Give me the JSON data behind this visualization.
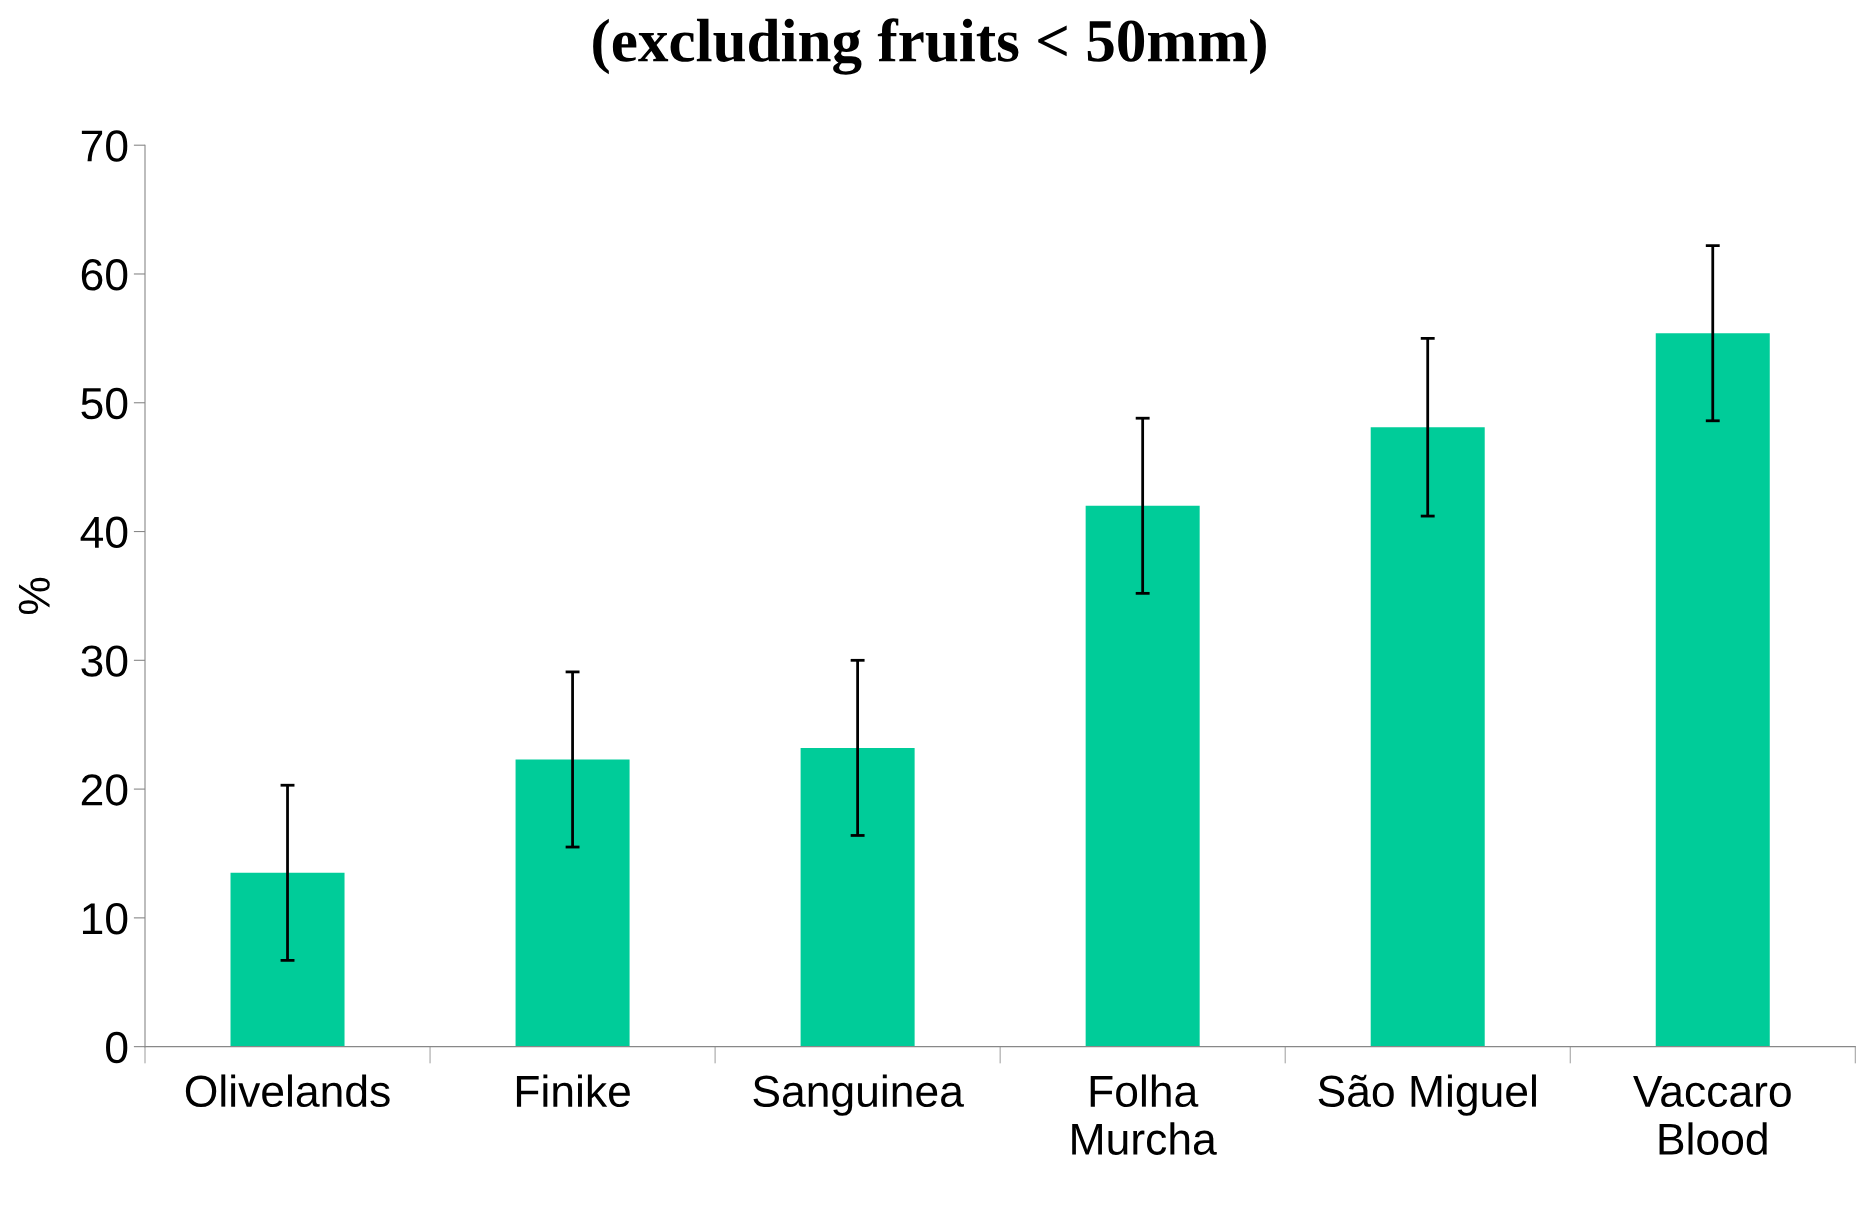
{
  "chart_data": {
    "type": "bar",
    "title": "(excluding fruits < 50mm)",
    "ylabel": "%",
    "categories": [
      "Olivelands",
      "Finike",
      "Sanguinea",
      "Folha\nMurcha",
      "São Miguel",
      "Vaccaro\nBlood"
    ],
    "values": [
      13.5,
      22.3,
      23.2,
      42.0,
      48.1,
      55.4
    ],
    "errors": [
      6.8,
      6.8,
      6.8,
      6.8,
      6.9,
      6.8
    ],
    "color": "#00cc99",
    "ylim": [
      0,
      70
    ],
    "yticks": [
      0,
      10,
      20,
      30,
      40,
      50,
      60,
      70
    ],
    "grid": false,
    "legend": false
  }
}
